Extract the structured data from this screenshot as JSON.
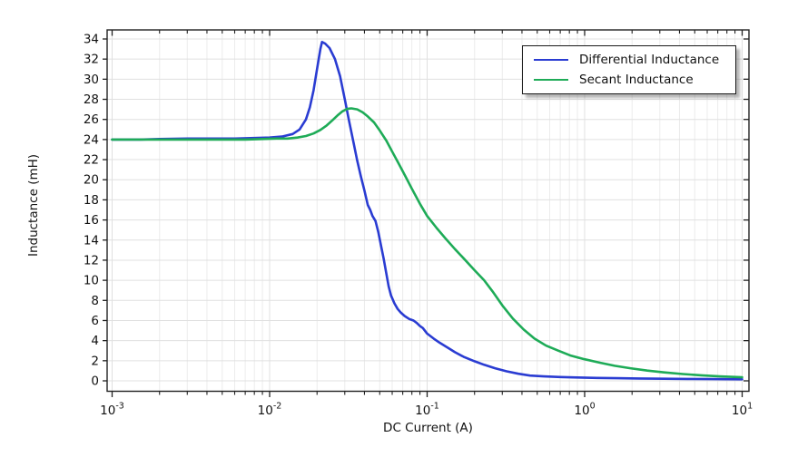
{
  "chart_data": {
    "type": "line",
    "title": "",
    "xlabel": "DC Current (A)",
    "ylabel": "Inductance (mH)",
    "x_scale": "log",
    "xlim": [
      0.001,
      10
    ],
    "ylim": [
      0,
      34
    ],
    "grid": true,
    "legend_position": "top-right",
    "x_tick_labels": {
      "base": "10",
      "exponents": [
        -3,
        -2,
        -1,
        0,
        1
      ]
    },
    "yticks": [
      0,
      2,
      4,
      6,
      8,
      10,
      12,
      14,
      16,
      18,
      20,
      22,
      24,
      26,
      28,
      30,
      32,
      34
    ],
    "colors": {
      "frame": "#222222",
      "grid_major": "#e0e0e0",
      "grid_minor": "#ececec",
      "text": "#111111"
    },
    "series": [
      {
        "name": "Differential Inductance",
        "color": "#2a3cd2",
        "x": [
          0.001,
          0.0015,
          0.002,
          0.003,
          0.004,
          0.006,
          0.008,
          0.01,
          0.012,
          0.014,
          0.0155,
          0.017,
          0.018,
          0.019,
          0.02,
          0.021,
          0.0215,
          0.0225,
          0.024,
          0.026,
          0.028,
          0.03,
          0.032,
          0.034,
          0.036,
          0.038,
          0.04,
          0.042,
          0.0435,
          0.045,
          0.047,
          0.049,
          0.051,
          0.053,
          0.055,
          0.057,
          0.059,
          0.062,
          0.065,
          0.068,
          0.072,
          0.077,
          0.082,
          0.086,
          0.09,
          0.094,
          0.1,
          0.11,
          0.12,
          0.135,
          0.15,
          0.17,
          0.2,
          0.23,
          0.27,
          0.32,
          0.38,
          0.45,
          0.55,
          0.7,
          0.9,
          1.2,
          1.6,
          2.2,
          3.2,
          4.5,
          6.5,
          10
        ],
        "y": [
          24.0,
          24.0,
          24.05,
          24.1,
          24.1,
          24.1,
          24.15,
          24.2,
          24.3,
          24.55,
          25.0,
          26.0,
          27.2,
          28.9,
          31.0,
          33.0,
          33.7,
          33.55,
          33.1,
          32.0,
          30.3,
          28.0,
          25.8,
          23.8,
          21.9,
          20.3,
          18.9,
          17.5,
          17.0,
          16.4,
          15.9,
          14.8,
          13.4,
          12.1,
          10.7,
          9.4,
          8.5,
          7.7,
          7.15,
          6.8,
          6.45,
          6.15,
          6.0,
          5.75,
          5.45,
          5.25,
          4.7,
          4.2,
          3.8,
          3.3,
          2.85,
          2.4,
          1.95,
          1.6,
          1.25,
          0.95,
          0.7,
          0.52,
          0.44,
          0.38,
          0.33,
          0.29,
          0.26,
          0.235,
          0.21,
          0.19,
          0.17,
          0.155
        ]
      },
      {
        "name": "Secant Inductance",
        "color": "#1eab57",
        "x": [
          0.001,
          0.002,
          0.003,
          0.005,
          0.007,
          0.009,
          0.011,
          0.013,
          0.015,
          0.017,
          0.019,
          0.021,
          0.023,
          0.025,
          0.027,
          0.029,
          0.031,
          0.033,
          0.036,
          0.039,
          0.042,
          0.046,
          0.05,
          0.055,
          0.06,
          0.066,
          0.073,
          0.08,
          0.09,
          0.1,
          0.115,
          0.13,
          0.15,
          0.17,
          0.2,
          0.23,
          0.26,
          0.3,
          0.35,
          0.41,
          0.48,
          0.57,
          0.68,
          0.82,
          1.0,
          1.25,
          1.55,
          1.95,
          2.5,
          3.2,
          4.2,
          5.5,
          7.2,
          10
        ],
        "y": [
          24.0,
          24.0,
          24.0,
          24.0,
          24.0,
          24.05,
          24.1,
          24.1,
          24.2,
          24.35,
          24.6,
          24.95,
          25.4,
          25.9,
          26.4,
          26.8,
          27.05,
          27.1,
          27.0,
          26.7,
          26.3,
          25.7,
          24.9,
          23.9,
          22.8,
          21.6,
          20.3,
          19.1,
          17.6,
          16.4,
          15.2,
          14.2,
          13.1,
          12.2,
          11.0,
          10.0,
          8.9,
          7.5,
          6.2,
          5.1,
          4.2,
          3.5,
          3.0,
          2.5,
          2.15,
          1.8,
          1.5,
          1.25,
          1.02,
          0.84,
          0.68,
          0.55,
          0.44,
          0.35
        ]
      }
    ]
  }
}
